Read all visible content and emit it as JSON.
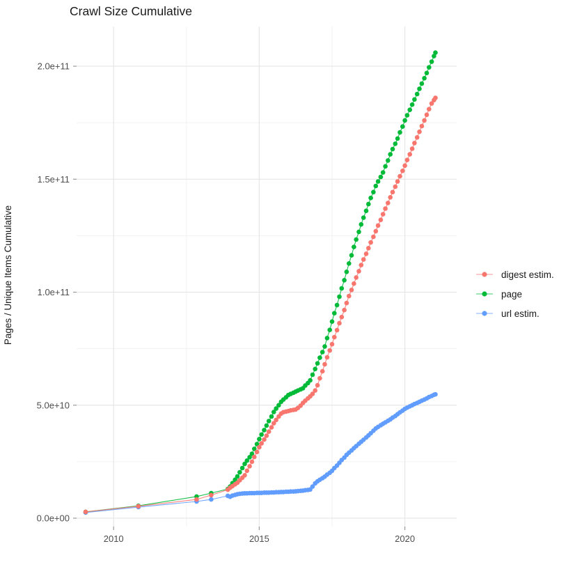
{
  "title": "Crawl Size Cumulative",
  "colors": {
    "digest": "#F8766D",
    "page": "#00BA38",
    "url": "#619CFF",
    "grid_major": "#E6E6E6",
    "grid_minor": "#F2F2F2",
    "axis_text": "#4D4D4D",
    "tick_mark": "#999999",
    "title_text": "#1a1a1a",
    "background": "#ffffff"
  },
  "legend": {
    "items": [
      {
        "label": "digest estim."
      },
      {
        "label": "page"
      },
      {
        "label": "url estim."
      }
    ]
  },
  "chart_data": {
    "type": "line",
    "title": "Crawl Size Cumulative",
    "xlabel": "",
    "ylabel": "Pages / Unique Items Cumulative",
    "legend_position": "right",
    "grid": "on",
    "xlim": [
      2008.7,
      2021.8
    ],
    "ylim": [
      0,
      217000000000.0
    ],
    "value_unit": "items, stored below in billions (1e9)",
    "x_ticks": [
      {
        "value": 2010,
        "label": "2010"
      },
      {
        "value": 2015,
        "label": "2015"
      },
      {
        "value": 2020,
        "label": "2020"
      }
    ],
    "x_minor_ticks": [
      2012.5,
      2017.5
    ],
    "y_ticks": [
      {
        "value": 0,
        "label": "0.0e+00"
      },
      {
        "value": 50,
        "label": "5.0e+10"
      },
      {
        "value": 100,
        "label": "1.0e+11"
      },
      {
        "value": 150,
        "label": "1.5e+11"
      },
      {
        "value": 200,
        "label": "2.0e+11"
      }
    ],
    "y_minor_ticks": [
      25,
      75,
      125,
      175
    ],
    "series": [
      {
        "name": "digest estim.",
        "slug": "digest-estim",
        "color": "#F8766D",
        "points": [
          [
            2009.04,
            2.8
          ],
          [
            2010.85,
            5.3
          ],
          [
            2012.85,
            8.3
          ],
          [
            2013.35,
            10.2
          ],
          [
            2013.92,
            12.6
          ],
          [
            2014.0,
            13.5
          ],
          [
            2014.08,
            14.2
          ],
          [
            2014.17,
            15
          ],
          [
            2014.25,
            15.7
          ],
          [
            2014.33,
            16.8
          ],
          [
            2014.42,
            17.9
          ],
          [
            2014.5,
            19
          ],
          [
            2014.58,
            21
          ],
          [
            2014.67,
            23
          ],
          [
            2014.75,
            25
          ],
          [
            2014.83,
            27.1
          ],
          [
            2014.92,
            29.3
          ],
          [
            2015.0,
            31.4
          ],
          [
            2015.08,
            33.1
          ],
          [
            2015.17,
            34.8
          ],
          [
            2015.25,
            36.5
          ],
          [
            2015.33,
            38.3
          ],
          [
            2015.42,
            40.2
          ],
          [
            2015.5,
            42
          ],
          [
            2015.58,
            43.5
          ],
          [
            2015.67,
            45
          ],
          [
            2015.75,
            46.3
          ],
          [
            2015.83,
            46.9
          ],
          [
            2015.92,
            47.2
          ],
          [
            2016.0,
            47.4
          ],
          [
            2016.08,
            47.7
          ],
          [
            2016.17,
            47.9
          ],
          [
            2016.25,
            48.1
          ],
          [
            2016.33,
            48.8
          ],
          [
            2016.42,
            49.8
          ],
          [
            2016.5,
            51
          ],
          [
            2016.58,
            52
          ],
          [
            2016.67,
            53
          ],
          [
            2016.75,
            53.9
          ],
          [
            2016.83,
            55
          ],
          [
            2016.92,
            56.5
          ],
          [
            2017.0,
            58.8
          ],
          [
            2017.08,
            61.9
          ],
          [
            2017.17,
            65
          ],
          [
            2017.25,
            68.1
          ],
          [
            2017.33,
            71.2
          ],
          [
            2017.42,
            74.2
          ],
          [
            2017.5,
            77
          ],
          [
            2017.58,
            80.1
          ],
          [
            2017.67,
            83.2
          ],
          [
            2017.75,
            86.3
          ],
          [
            2017.83,
            89
          ],
          [
            2017.92,
            92.1
          ],
          [
            2018.0,
            95.2
          ],
          [
            2018.08,
            98.3
          ],
          [
            2018.17,
            101
          ],
          [
            2018.25,
            103.8
          ],
          [
            2018.33,
            106.5
          ],
          [
            2018.42,
            109.3
          ],
          [
            2018.5,
            112
          ],
          [
            2018.58,
            114.5
          ],
          [
            2018.67,
            117
          ],
          [
            2018.75,
            119.5
          ],
          [
            2018.83,
            122
          ],
          [
            2018.92,
            124.5
          ],
          [
            2019.0,
            127
          ],
          [
            2019.08,
            129.5
          ],
          [
            2019.17,
            132
          ],
          [
            2019.25,
            134.5
          ],
          [
            2019.33,
            137
          ],
          [
            2019.42,
            139.5
          ],
          [
            2019.5,
            142
          ],
          [
            2019.58,
            144.3
          ],
          [
            2019.67,
            146.7
          ],
          [
            2019.75,
            149
          ],
          [
            2019.83,
            151.3
          ],
          [
            2019.92,
            153.7
          ],
          [
            2020.0,
            156
          ],
          [
            2020.08,
            158.5
          ],
          [
            2020.17,
            161
          ],
          [
            2020.25,
            163.5
          ],
          [
            2020.33,
            166
          ],
          [
            2020.42,
            168.5
          ],
          [
            2020.5,
            171
          ],
          [
            2020.58,
            173.5
          ],
          [
            2020.67,
            176
          ],
          [
            2020.75,
            178.5
          ],
          [
            2020.83,
            181
          ],
          [
            2020.92,
            183.5
          ],
          [
            2021.0,
            185
          ],
          [
            2021.05,
            186
          ]
        ]
      },
      {
        "name": "page",
        "slug": "page",
        "color": "#00BA38",
        "points": [
          [
            2009.04,
            2.8
          ],
          [
            2010.85,
            5.5
          ],
          [
            2012.85,
            9.6
          ],
          [
            2013.35,
            11.1
          ],
          [
            2013.92,
            12.9
          ],
          [
            2014.0,
            14
          ],
          [
            2014.08,
            15.5
          ],
          [
            2014.17,
            17
          ],
          [
            2014.25,
            18.5
          ],
          [
            2014.33,
            20.3
          ],
          [
            2014.42,
            22.2
          ],
          [
            2014.5,
            24
          ],
          [
            2014.58,
            25.5
          ],
          [
            2014.67,
            27
          ],
          [
            2014.75,
            28.5
          ],
          [
            2014.83,
            30.7
          ],
          [
            2014.92,
            32.8
          ],
          [
            2015.0,
            35
          ],
          [
            2015.08,
            37
          ],
          [
            2015.17,
            39
          ],
          [
            2015.25,
            41
          ],
          [
            2015.33,
            43
          ],
          [
            2015.42,
            45
          ],
          [
            2015.5,
            47
          ],
          [
            2015.58,
            48.5
          ],
          [
            2015.67,
            50
          ],
          [
            2015.75,
            51.5
          ],
          [
            2015.83,
            52.5
          ],
          [
            2015.92,
            53.5
          ],
          [
            2016.0,
            54.5
          ],
          [
            2016.08,
            55
          ],
          [
            2016.17,
            55.5
          ],
          [
            2016.25,
            56
          ],
          [
            2016.33,
            56.5
          ],
          [
            2016.42,
            57
          ],
          [
            2016.5,
            57.5
          ],
          [
            2016.58,
            58.7
          ],
          [
            2016.67,
            59.8
          ],
          [
            2016.75,
            61
          ],
          [
            2016.83,
            63.5
          ],
          [
            2016.92,
            66
          ],
          [
            2017.0,
            68.5
          ],
          [
            2017.08,
            71
          ],
          [
            2017.17,
            73.5
          ],
          [
            2017.25,
            76
          ],
          [
            2017.33,
            79.7
          ],
          [
            2017.42,
            83.3
          ],
          [
            2017.5,
            87
          ],
          [
            2017.58,
            90.7
          ],
          [
            2017.67,
            94.3
          ],
          [
            2017.75,
            98
          ],
          [
            2017.83,
            101.7
          ],
          [
            2017.92,
            105.3
          ],
          [
            2018.0,
            109
          ],
          [
            2018.08,
            112.7
          ],
          [
            2018.17,
            116.3
          ],
          [
            2018.25,
            120
          ],
          [
            2018.33,
            123.3
          ],
          [
            2018.42,
            126.7
          ],
          [
            2018.5,
            130
          ],
          [
            2018.58,
            133
          ],
          [
            2018.67,
            136
          ],
          [
            2018.75,
            139
          ],
          [
            2018.83,
            141.7
          ],
          [
            2018.92,
            144.3
          ],
          [
            2019.0,
            147
          ],
          [
            2019.08,
            149
          ],
          [
            2019.17,
            151
          ],
          [
            2019.25,
            153
          ],
          [
            2019.33,
            155.7
          ],
          [
            2019.42,
            158.3
          ],
          [
            2019.5,
            161
          ],
          [
            2019.58,
            163.3
          ],
          [
            2019.67,
            165.7
          ],
          [
            2019.75,
            168
          ],
          [
            2019.83,
            170.7
          ],
          [
            2019.92,
            173.3
          ],
          [
            2020.0,
            176
          ],
          [
            2020.08,
            178.3
          ],
          [
            2020.17,
            180.7
          ],
          [
            2020.25,
            183
          ],
          [
            2020.33,
            185.3
          ],
          [
            2020.42,
            187.7
          ],
          [
            2020.5,
            190
          ],
          [
            2020.58,
            192.3
          ],
          [
            2020.67,
            194.7
          ],
          [
            2020.75,
            197
          ],
          [
            2020.83,
            199.5
          ],
          [
            2020.92,
            202
          ],
          [
            2021.0,
            204.5
          ],
          [
            2021.05,
            206
          ]
        ]
      },
      {
        "name": "url estim.",
        "slug": "url-estim",
        "color": "#619CFF",
        "points": [
          [
            2009.04,
            2.5
          ],
          [
            2010.85,
            4.9
          ],
          [
            2012.85,
            7.4
          ],
          [
            2013.35,
            8.3
          ],
          [
            2013.92,
            9.9
          ],
          [
            2014.0,
            9.5
          ],
          [
            2014.08,
            10
          ],
          [
            2014.17,
            10.3
          ],
          [
            2014.25,
            10.6
          ],
          [
            2014.33,
            10.8
          ],
          [
            2014.42,
            10.9
          ],
          [
            2014.5,
            11
          ],
          [
            2014.58,
            11
          ],
          [
            2014.67,
            11.1
          ],
          [
            2014.75,
            11.1
          ],
          [
            2014.83,
            11.1
          ],
          [
            2014.92,
            11.2
          ],
          [
            2015.0,
            11.2
          ],
          [
            2015.08,
            11.2
          ],
          [
            2015.17,
            11.3
          ],
          [
            2015.25,
            11.3
          ],
          [
            2015.33,
            11.3
          ],
          [
            2015.42,
            11.4
          ],
          [
            2015.5,
            11.4
          ],
          [
            2015.58,
            11.5
          ],
          [
            2015.67,
            11.5
          ],
          [
            2015.75,
            11.6
          ],
          [
            2015.83,
            11.6
          ],
          [
            2015.92,
            11.7
          ],
          [
            2016.0,
            11.7
          ],
          [
            2016.08,
            11.8
          ],
          [
            2016.17,
            11.8
          ],
          [
            2016.25,
            11.9
          ],
          [
            2016.33,
            12
          ],
          [
            2016.42,
            12.1
          ],
          [
            2016.5,
            12.2
          ],
          [
            2016.58,
            12.4
          ],
          [
            2016.67,
            12.5
          ],
          [
            2016.75,
            12.7
          ],
          [
            2016.83,
            14
          ],
          [
            2016.92,
            15.4
          ],
          [
            2017.0,
            16.3
          ],
          [
            2017.08,
            17
          ],
          [
            2017.17,
            17.7
          ],
          [
            2017.25,
            18.4
          ],
          [
            2017.33,
            19.3
          ],
          [
            2017.42,
            20.1
          ],
          [
            2017.5,
            21
          ],
          [
            2017.58,
            22.2
          ],
          [
            2017.67,
            23.3
          ],
          [
            2017.75,
            24.5
          ],
          [
            2017.83,
            25.7
          ],
          [
            2017.92,
            26.8
          ],
          [
            2018.0,
            28
          ],
          [
            2018.08,
            29
          ],
          [
            2018.17,
            30
          ],
          [
            2018.25,
            31
          ],
          [
            2018.33,
            31.9
          ],
          [
            2018.42,
            32.9
          ],
          [
            2018.5,
            33.8
          ],
          [
            2018.58,
            34.7
          ],
          [
            2018.67,
            35.7
          ],
          [
            2018.75,
            36.6
          ],
          [
            2018.83,
            37.6
          ],
          [
            2018.92,
            38.7
          ],
          [
            2019.0,
            39.7
          ],
          [
            2019.08,
            40.4
          ],
          [
            2019.17,
            41.1
          ],
          [
            2019.25,
            41.8
          ],
          [
            2019.33,
            42.4
          ],
          [
            2019.42,
            43.1
          ],
          [
            2019.5,
            43.7
          ],
          [
            2019.58,
            44.5
          ],
          [
            2019.67,
            45.2
          ],
          [
            2019.75,
            46
          ],
          [
            2019.83,
            46.8
          ],
          [
            2019.92,
            47.6
          ],
          [
            2020.0,
            48.4
          ],
          [
            2020.08,
            48.9
          ],
          [
            2020.17,
            49.5
          ],
          [
            2020.25,
            50
          ],
          [
            2020.33,
            50.5
          ],
          [
            2020.42,
            51
          ],
          [
            2020.5,
            51.5
          ],
          [
            2020.58,
            52
          ],
          [
            2020.67,
            52.5
          ],
          [
            2020.75,
            53
          ],
          [
            2020.83,
            53.6
          ],
          [
            2020.92,
            54.1
          ],
          [
            2021.0,
            54.6
          ],
          [
            2021.05,
            54.8
          ]
        ]
      }
    ]
  }
}
